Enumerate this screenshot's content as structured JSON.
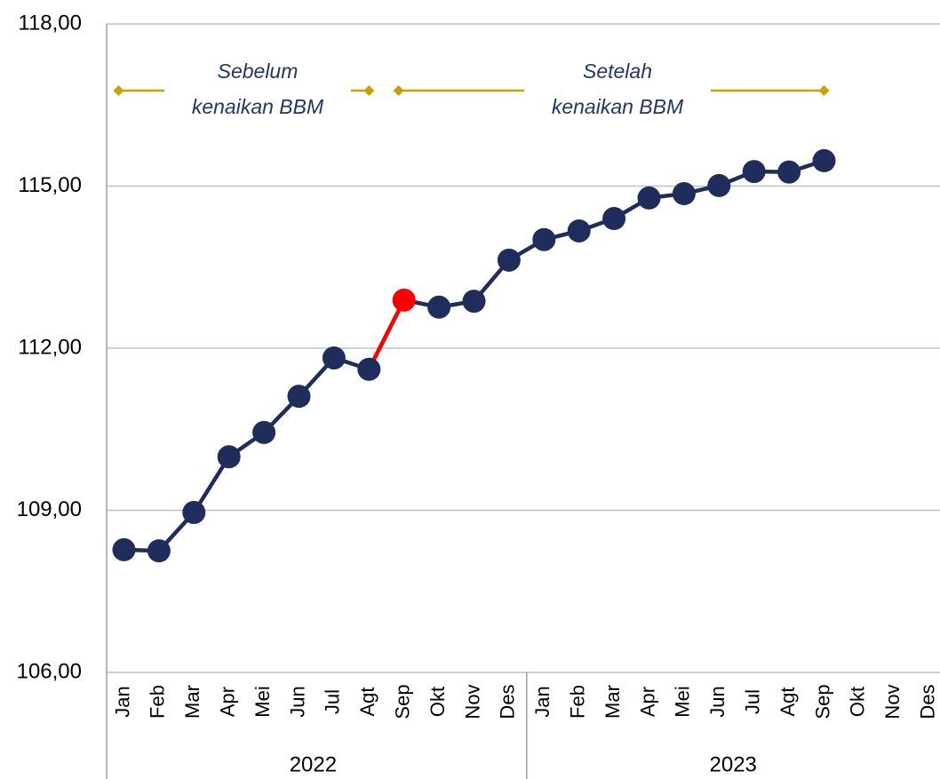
{
  "chart_data": {
    "type": "line",
    "categories": [
      "Jan",
      "Feb",
      "Mar",
      "Apr",
      "Mei",
      "Jun",
      "Jul",
      "Agt",
      "Sep",
      "Okt",
      "Nov",
      "Des",
      "Jan",
      "Feb",
      "Mar",
      "Apr",
      "Mei",
      "Jun",
      "Jul",
      "Agt",
      "Sep",
      "Okt",
      "Nov",
      "Des"
    ],
    "year_groups": [
      "2022",
      "2023"
    ],
    "values": [
      108.27,
      108.25,
      108.96,
      109.99,
      110.44,
      111.11,
      111.82,
      111.61,
      112.89,
      112.76,
      112.87,
      113.63,
      114.01,
      114.17,
      114.4,
      114.78,
      114.86,
      115.01,
      115.27,
      115.26,
      115.47,
      null,
      null,
      null
    ],
    "color": "#1f2d5c",
    "highlight_index": 8,
    "highlight_color": "#ff0000",
    "ylim": [
      106,
      118
    ],
    "yticks": [
      {
        "value": 106,
        "label": "106,00"
      },
      {
        "value": 109,
        "label": "109,00"
      },
      {
        "value": 112,
        "label": "112,00"
      },
      {
        "value": 115,
        "label": "115,00"
      },
      {
        "value": 118,
        "label": "118,00"
      }
    ],
    "grid": true,
    "annotations": [
      {
        "lines": [
          "Sebelum",
          "kenaikan BBM"
        ],
        "color": "#c9a100"
      },
      {
        "lines": [
          "Setelah",
          "kenaikan BBM"
        ],
        "color": "#c9a100"
      }
    ]
  }
}
